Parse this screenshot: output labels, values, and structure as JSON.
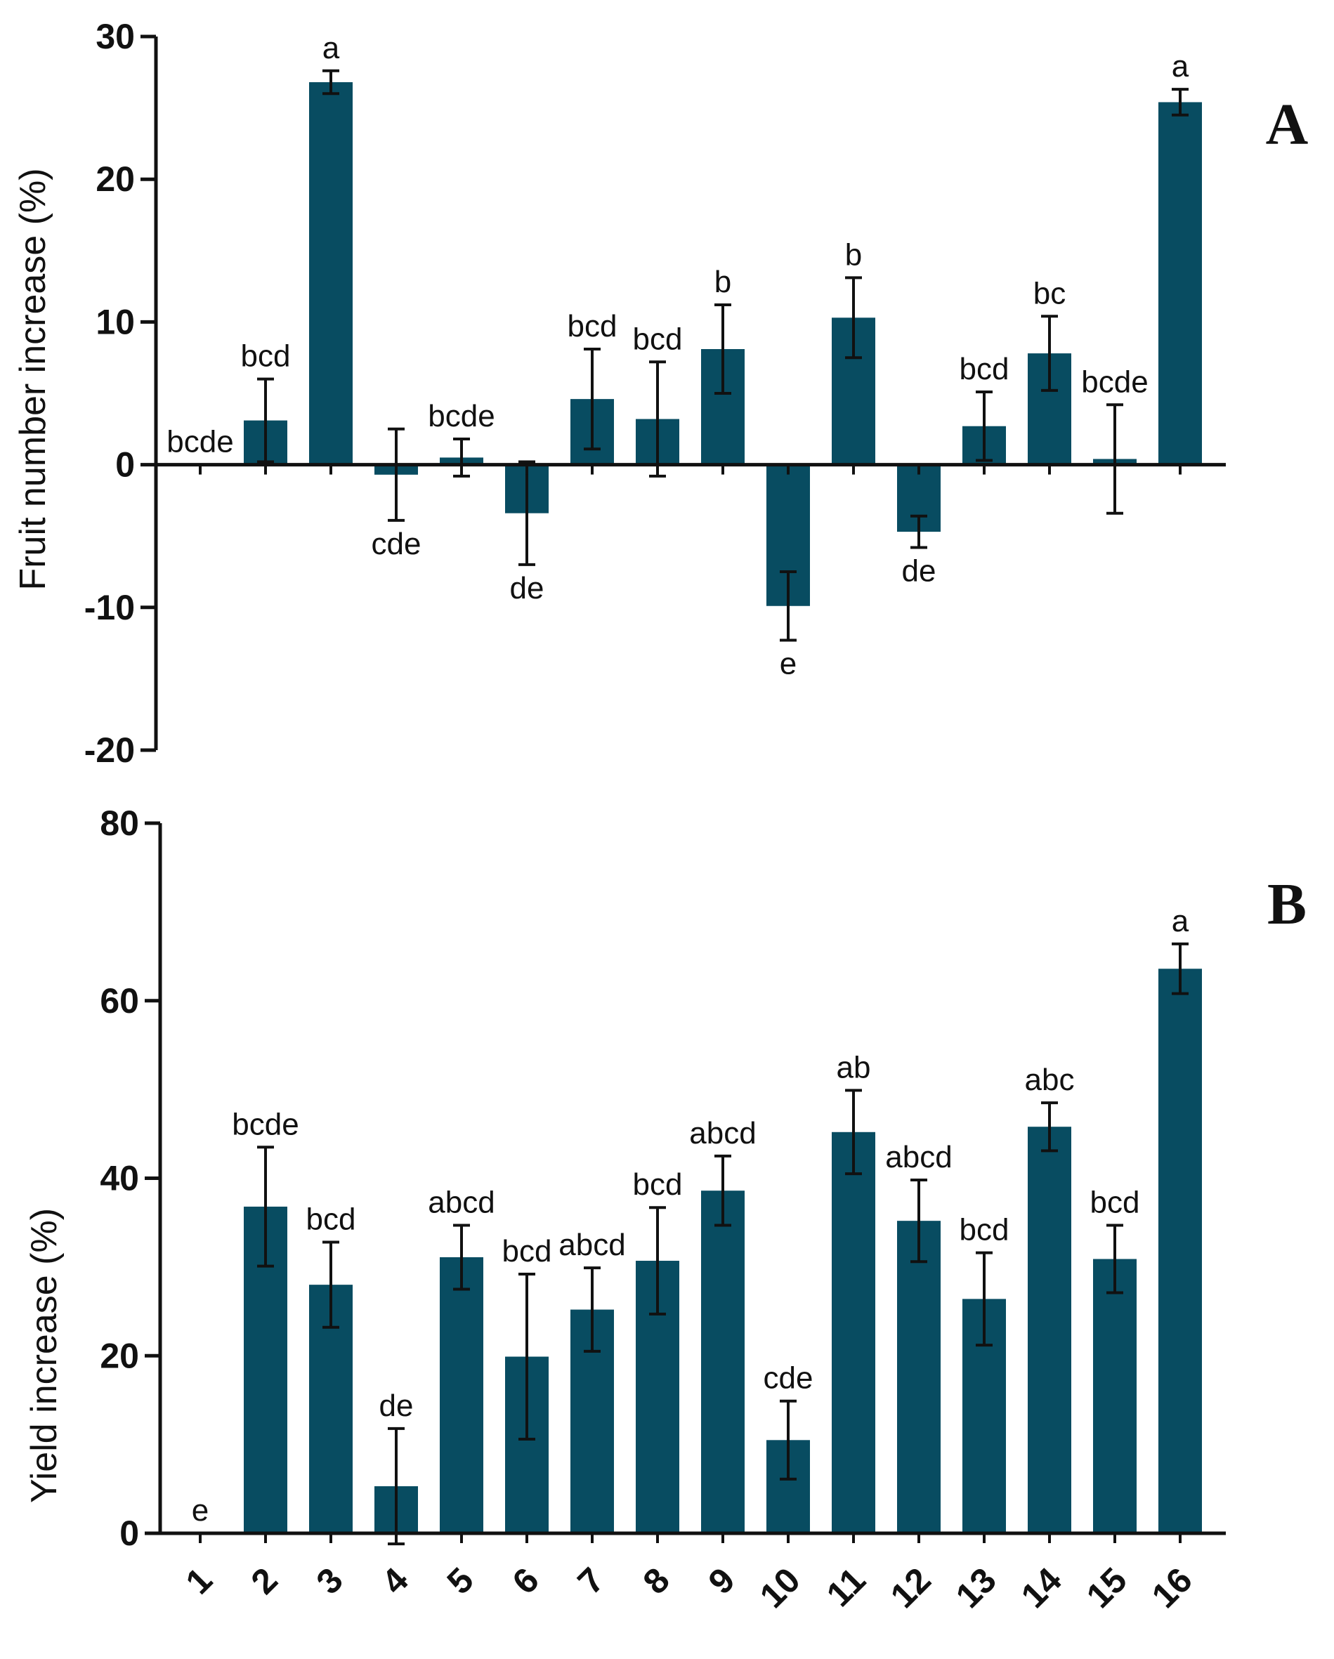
{
  "colors": {
    "bar": "#084c61",
    "axis": "#111111",
    "text": "#111111"
  },
  "chart_data": [
    {
      "panel": "A",
      "type": "bar",
      "title": "",
      "xlabel": "",
      "ylabel": "Fruit number increase (%)",
      "ylim": [
        -20,
        30
      ],
      "yticks": [
        -20,
        -10,
        0,
        10,
        20,
        30
      ],
      "categories": [
        "1",
        "2",
        "3",
        "4",
        "5",
        "6",
        "7",
        "8",
        "9",
        "10",
        "11",
        "12",
        "13",
        "14",
        "15",
        "16"
      ],
      "values": [
        0,
        3.1,
        26.8,
        -0.7,
        0.5,
        -3.4,
        4.6,
        3.2,
        8.1,
        -9.9,
        10.3,
        -4.7,
        2.7,
        7.8,
        0.4,
        25.4
      ],
      "errors": [
        0,
        2.9,
        0.8,
        3.2,
        1.3,
        3.6,
        3.5,
        4.0,
        3.1,
        2.4,
        2.8,
        1.1,
        2.4,
        2.6,
        3.8,
        0.9
      ],
      "labels": [
        "bcde",
        "bcd",
        "a",
        "cde",
        "bcde",
        "de",
        "bcd",
        "bcd",
        "b",
        "e",
        "b",
        "de",
        "bcd",
        "bc",
        "bcde",
        "a"
      ]
    },
    {
      "panel": "B",
      "type": "bar",
      "title": "",
      "xlabel": "",
      "ylabel": "Yield increase (%)",
      "ylim": [
        0,
        80
      ],
      "yticks": [
        0,
        20,
        40,
        60,
        80
      ],
      "categories": [
        "1",
        "2",
        "3",
        "4",
        "5",
        "6",
        "7",
        "8",
        "9",
        "10",
        "11",
        "12",
        "13",
        "14",
        "15",
        "16"
      ],
      "values": [
        0,
        36.8,
        28.0,
        5.3,
        31.1,
        19.9,
        25.2,
        30.7,
        38.6,
        10.5,
        45.2,
        35.2,
        26.4,
        45.8,
        30.9,
        63.6
      ],
      "errors": [
        0,
        6.7,
        4.8,
        6.5,
        3.6,
        9.3,
        4.7,
        6.0,
        3.9,
        4.4,
        4.7,
        4.6,
        5.2,
        2.7,
        3.8,
        2.8
      ],
      "labels": [
        "e",
        "bcde",
        "bcd",
        "de",
        "abcd",
        "bcd",
        "abcd",
        "bcd",
        "abcd",
        "cde",
        "ab",
        "abcd",
        "bcd",
        "abc",
        "bcd",
        "a"
      ]
    }
  ],
  "panel_labels": {
    "a": "A",
    "b": "B"
  }
}
